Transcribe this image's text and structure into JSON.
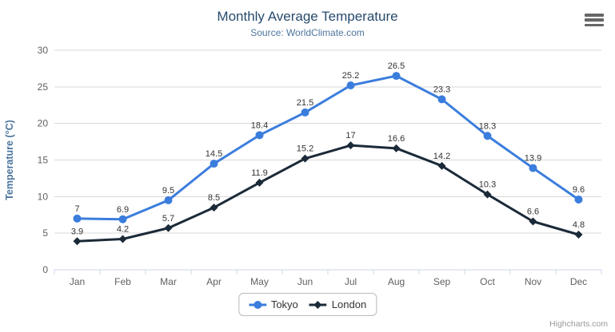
{
  "header": {
    "title": "Monthly Average Temperature",
    "subtitle": "Source: WorldClimate.com"
  },
  "menu": {
    "icon": "hamburger-icon"
  },
  "credit": "Highcharts.com",
  "colors": {
    "title": "#274b6d",
    "subtitle": "#4d759e",
    "grid": "#d8d8d8",
    "axis_line": "#ccd6eb",
    "tick_label": "#606060",
    "data_label": "#333333",
    "tokyo": "#3b7ddd",
    "london": "#1b2a38"
  },
  "chart_data": {
    "type": "line",
    "title": "Monthly Average Temperature",
    "subtitle": "Source: WorldClimate.com",
    "categories": [
      "Jan",
      "Feb",
      "Mar",
      "Apr",
      "May",
      "Jun",
      "Jul",
      "Aug",
      "Sep",
      "Oct",
      "Nov",
      "Dec"
    ],
    "series": [
      {
        "name": "Tokyo",
        "color": "#3b7ddd",
        "marker": "circle",
        "values": [
          7,
          6.9,
          9.5,
          14.5,
          18.4,
          21.5,
          25.2,
          26.5,
          23.3,
          18.3,
          13.9,
          9.6
        ]
      },
      {
        "name": "London",
        "color": "#1b2a38",
        "marker": "diamond",
        "values": [
          3.9,
          4.2,
          5.7,
          8.5,
          11.9,
          15.2,
          17,
          16.6,
          14.2,
          10.3,
          6.6,
          4.8
        ]
      }
    ],
    "xlabel": "",
    "ylabel": "Temperature (°C)",
    "ylim": [
      0,
      30
    ],
    "yticks": [
      0,
      5,
      10,
      15,
      20,
      25,
      30
    ],
    "grid": true,
    "data_labels": true,
    "legend_position": "bottom"
  }
}
